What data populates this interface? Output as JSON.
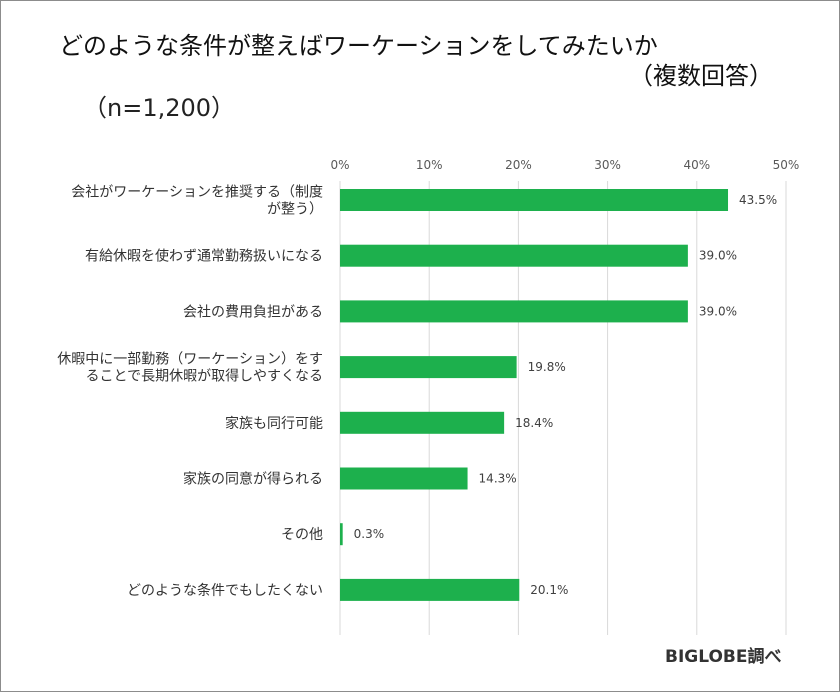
{
  "chart_data": {
    "type": "bar",
    "orientation": "horizontal",
    "title_lines": [
      "どのような条件が整えばワーケーションをしてみたいか",
      "（複数回答）"
    ],
    "sample_size": "（n=1,200）",
    "source": "BIGLOBE調べ",
    "categories": [
      [
        "会社がワーケーションを推奨する（制度",
        "が整う）"
      ],
      [
        "有給休暇を使わず通常勤務扱いになる"
      ],
      [
        "会社の費用負担がある"
      ],
      [
        "休暇中に一部勤務（ワーケーション）をす",
        "ることで長期休暇が取得しやすくなる"
      ],
      [
        "家族も同行可能"
      ],
      [
        "家族の同意が得られる"
      ],
      [
        "その他"
      ],
      [
        "どのような条件でもしたくない"
      ]
    ],
    "values": [
      43.5,
      39.0,
      39.0,
      19.8,
      18.4,
      14.3,
      0.3,
      20.1
    ],
    "value_labels": [
      "43.5%",
      "39.0%",
      "39.0%",
      "19.8%",
      "18.4%",
      "14.3%",
      "0.3%",
      "20.1%"
    ],
    "xlim": [
      0,
      50
    ],
    "x_ticks": [
      "0%",
      "10%",
      "20%",
      "30%",
      "40%",
      "50%"
    ],
    "x_axis_position": "top",
    "grid": true,
    "bar_color": "#1db04d",
    "grid_color": "#d9d9d9"
  }
}
